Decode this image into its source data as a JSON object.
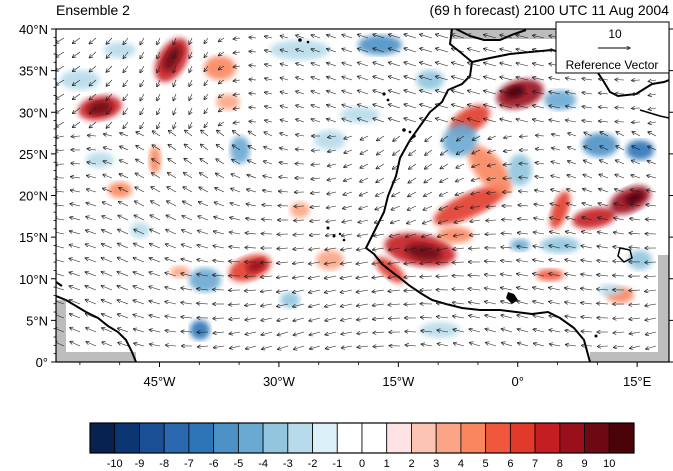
{
  "header": {
    "left_title": "Ensemble 2",
    "right_title": "(69 h forecast) 2100 UTC 11 Aug 2004"
  },
  "map": {
    "lat_labels": [
      "0°",
      "5°N",
      "10°N",
      "15°N",
      "20°N",
      "25°N",
      "30°N",
      "35°N",
      "40°N"
    ],
    "lon_labels": [
      "45°W",
      "30°W",
      "15°W",
      "0°",
      "15°E"
    ],
    "lat_range": [
      0,
      40
    ],
    "lon_range": [
      -58,
      19
    ],
    "field": "diverging anomaly shading (blue negative, red positive) with wind vectors",
    "coast_color": "#000000",
    "missing_color": "#bdbdbd"
  },
  "reference_vector": {
    "magnitude": "10",
    "label": "Reference Vector"
  },
  "colorbar": {
    "tick_labels": [
      "-10",
      "-9",
      "-8",
      "-7",
      "-6",
      "-5",
      "-4",
      "-3",
      "-2",
      "-1",
      "0",
      "1",
      "2",
      "3",
      "4",
      "5",
      "6",
      "7",
      "8",
      "9",
      "10"
    ],
    "colors": [
      "#08224f",
      "#0b3672",
      "#1c5096",
      "#2b68b0",
      "#2e75b8",
      "#4d92c6",
      "#6aa9d2",
      "#92c5de",
      "#b7dbea",
      "#dcf0f8",
      "#ffffff",
      "#ffffff",
      "#fde3e3",
      "#fcc4b2",
      "#fca586",
      "#f9865f",
      "#f0573c",
      "#e13a2b",
      "#c41d22",
      "#9a0f1c",
      "#6e0812",
      "#4a0309"
    ]
  }
}
